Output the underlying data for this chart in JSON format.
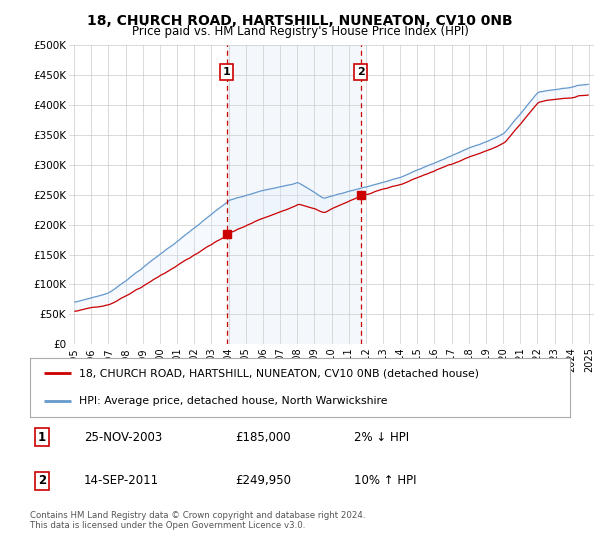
{
  "title": "18, CHURCH ROAD, HARTSHILL, NUNEATON, CV10 0NB",
  "subtitle": "Price paid vs. HM Land Registry's House Price Index (HPI)",
  "ylim": [
    0,
    500000
  ],
  "yticks": [
    0,
    50000,
    100000,
    150000,
    200000,
    250000,
    300000,
    350000,
    400000,
    450000,
    500000
  ],
  "ytick_labels": [
    "£0",
    "£50K",
    "£100K",
    "£150K",
    "£200K",
    "£250K",
    "£300K",
    "£350K",
    "£400K",
    "£450K",
    "£500K"
  ],
  "xlim_start": 1994.7,
  "xlim_end": 2025.3,
  "transaction1_date": "25-NOV-2003",
  "transaction1_price": 185000,
  "transaction1_pct": "2% ↓ HPI",
  "transaction1_year": 2003.88,
  "transaction2_date": "14-SEP-2011",
  "transaction2_price": 249950,
  "transaction2_pct": "10% ↑ HPI",
  "transaction2_year": 2011.7,
  "legend_line1": "18, CHURCH ROAD, HARTSHILL, NUNEATON, CV10 0NB (detached house)",
  "legend_line2": "HPI: Average price, detached house, North Warwickshire",
  "footer": "Contains HM Land Registry data © Crown copyright and database right 2024.\nThis data is licensed under the Open Government Licence v3.0.",
  "line_color_red": "#cc0000",
  "line_color_blue": "#6699cc",
  "shade_color": "#ddeeff",
  "bg_color": "#ffffff",
  "grid_color": "#cccccc",
  "marker_box_color": "#cc0000"
}
